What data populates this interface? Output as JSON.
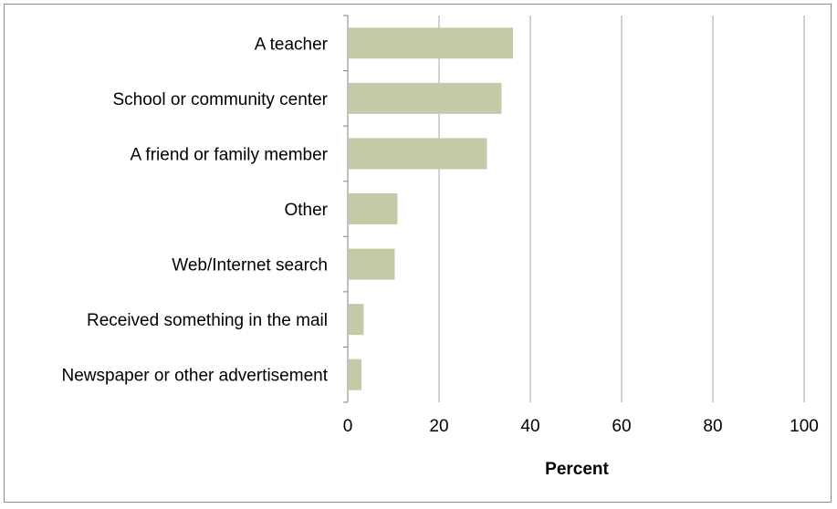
{
  "chart_data": {
    "type": "bar",
    "orientation": "horizontal",
    "categories": [
      "A teacher",
      "School or community center",
      "A friend or family member",
      "Other",
      "Web/Internet search",
      "Received something in the mail",
      "Newspaper or other advertisement"
    ],
    "values": [
      36,
      33.5,
      30.3,
      10.7,
      10.1,
      3.3,
      2.8
    ],
    "xlabel": "Percent",
    "xlim": [
      0,
      100
    ],
    "xticks": [
      "0",
      "20",
      "40",
      "60",
      "80",
      "100"
    ],
    "grid": "vertical",
    "bar_color": "#c6c9a8",
    "gridline_color": "#a6a6a6"
  }
}
